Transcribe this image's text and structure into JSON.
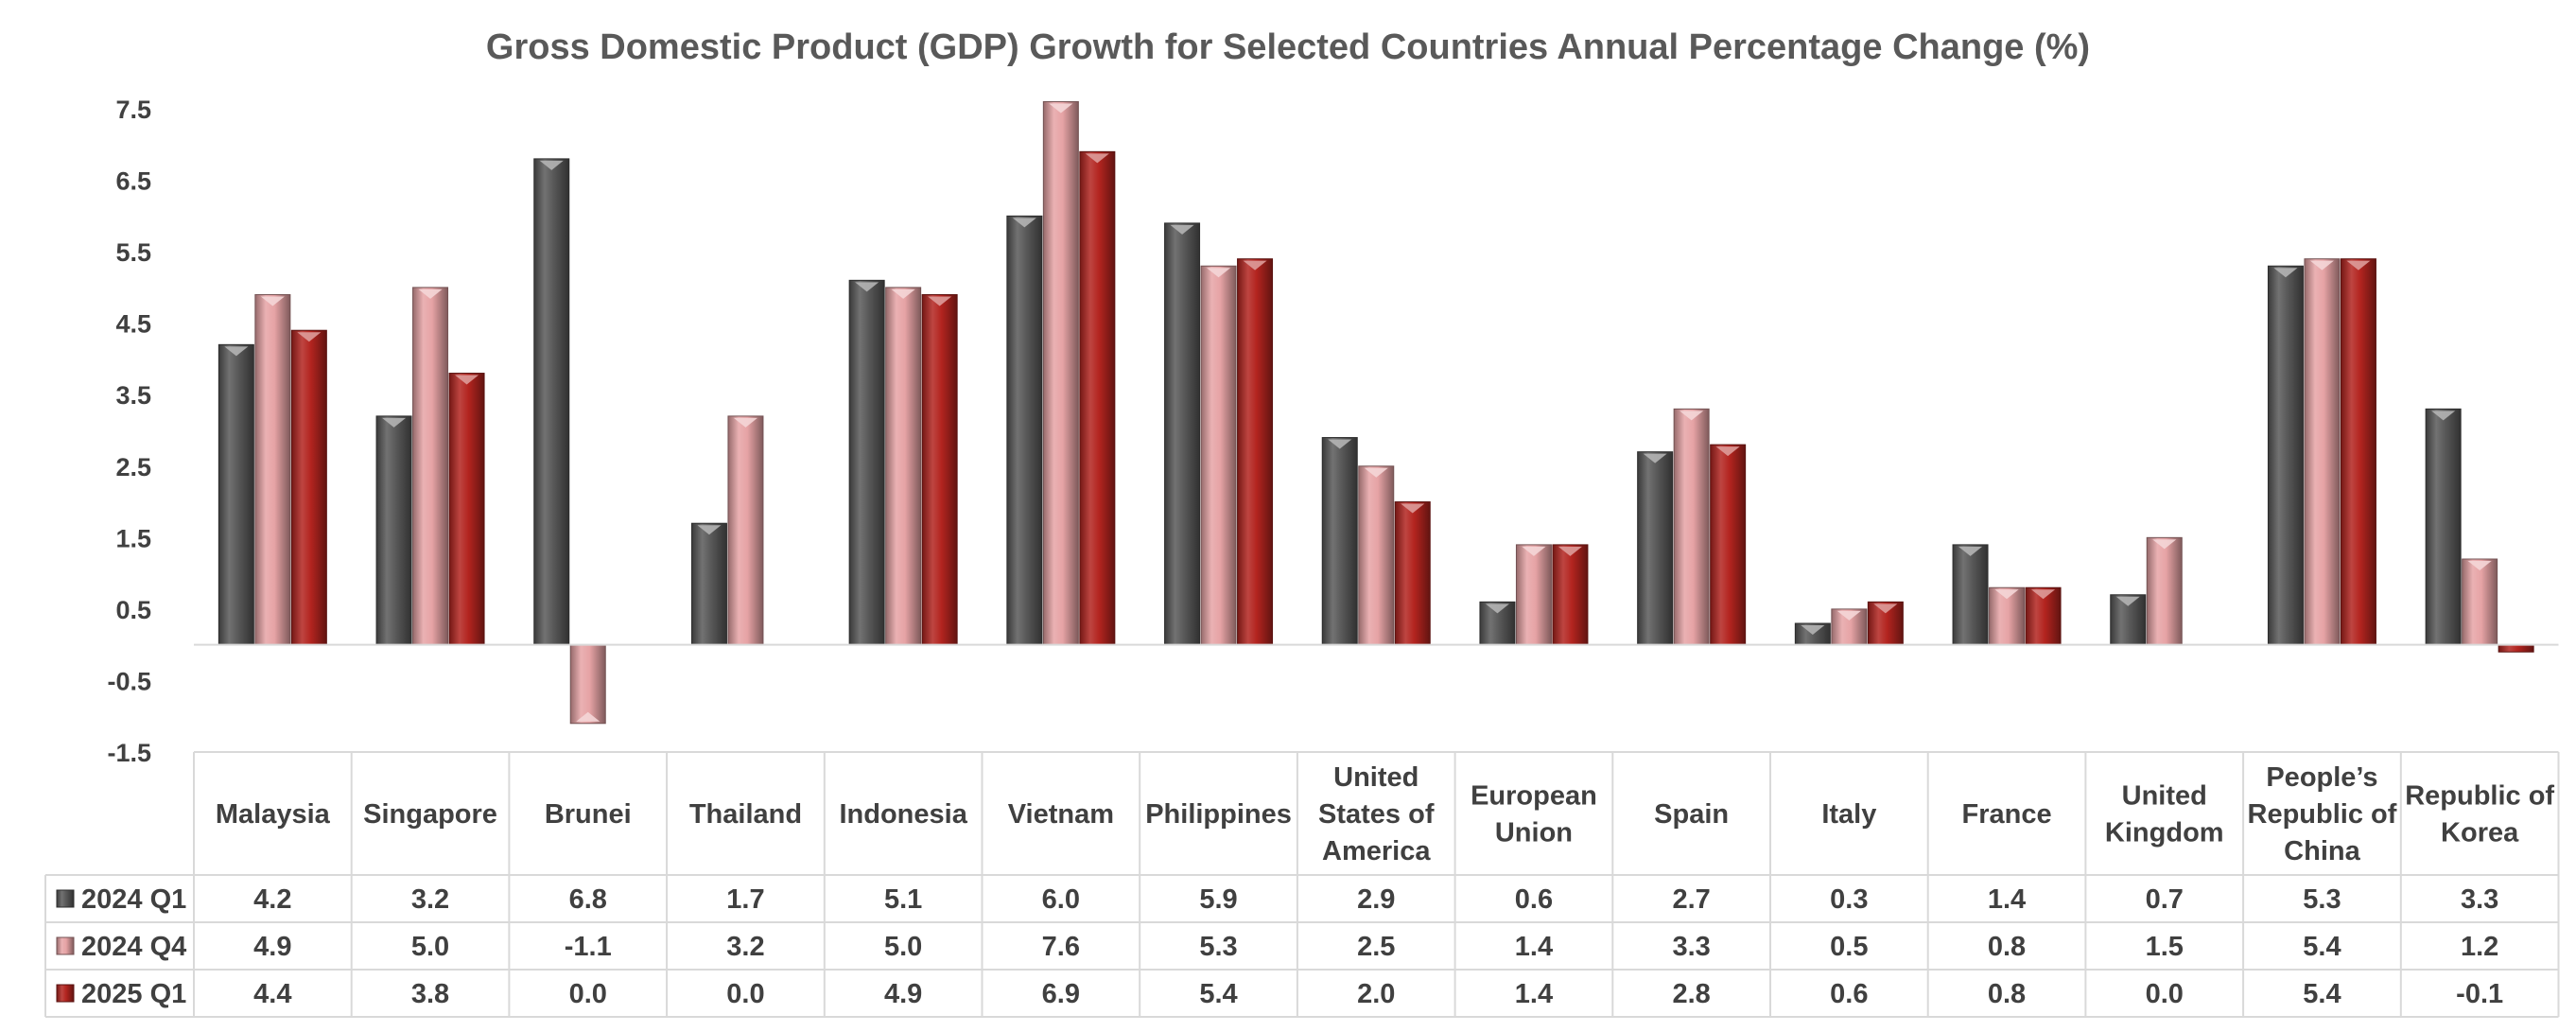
{
  "chart_data": {
    "type": "bar",
    "title": "Gross Domestic Product (GDP) Growth for Selected Countries Annual Percentage Change (%)",
    "categories": [
      [
        "Malaysia"
      ],
      [
        "Singapore"
      ],
      [
        "Brunei"
      ],
      [
        "Thailand"
      ],
      [
        "Indonesia"
      ],
      [
        "Vietnam"
      ],
      [
        "Philippines"
      ],
      [
        "United",
        "States of",
        "America"
      ],
      [
        "European",
        "Union"
      ],
      [
        "Spain"
      ],
      [
        "Italy"
      ],
      [
        "France"
      ],
      [
        "United",
        "Kingdom"
      ],
      [
        "People’s",
        "Republic of",
        "China"
      ],
      [
        "Republic of",
        "Korea"
      ]
    ],
    "series": [
      {
        "name": "2024 Q1",
        "color": "#595959",
        "values": [
          4.2,
          3.2,
          6.8,
          1.7,
          5.1,
          6.0,
          5.9,
          2.9,
          0.6,
          2.7,
          0.3,
          1.4,
          0.7,
          5.3,
          3.3
        ]
      },
      {
        "name": "2024 Q4",
        "color": "#e6a3a5",
        "values": [
          4.9,
          5.0,
          -1.1,
          3.2,
          5.0,
          7.6,
          5.3,
          2.5,
          1.4,
          3.3,
          0.5,
          0.8,
          1.5,
          5.4,
          1.2
        ]
      },
      {
        "name": "2025 Q1",
        "color": "#b3241f",
        "values": [
          4.4,
          3.8,
          0.0,
          0.0,
          4.9,
          6.9,
          5.4,
          2.0,
          1.4,
          2.8,
          0.6,
          0.8,
          0.0,
          5.4,
          -0.1
        ]
      }
    ],
    "y_ticks": [
      "7.5",
      "6.5",
      "5.5",
      "4.5",
      "3.5",
      "2.5",
      "1.5",
      "0.5",
      "-0.5",
      "-1.5"
    ],
    "ylim": [
      -1.5,
      7.5
    ],
    "grid": false,
    "legend": "data-table"
  }
}
